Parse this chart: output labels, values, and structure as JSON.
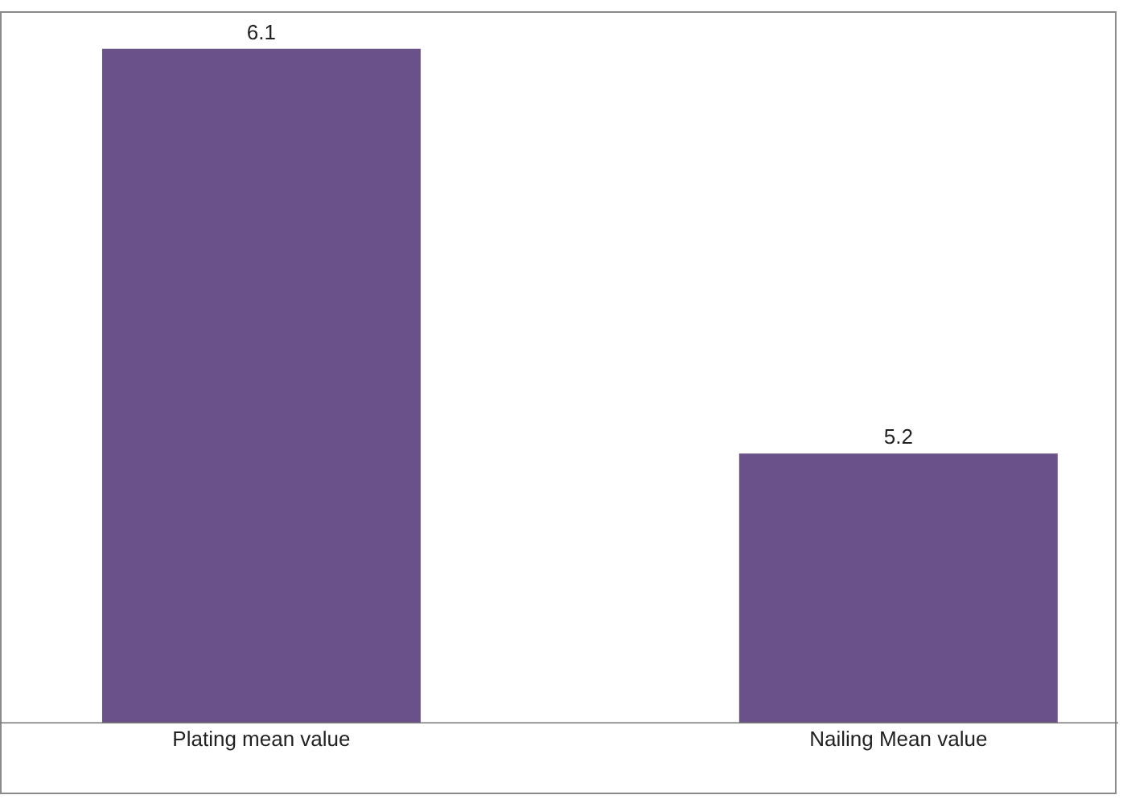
{
  "chart_data": {
    "type": "bar",
    "categories": [
      "Plating mean value",
      "Nailing Mean value"
    ],
    "values": [
      6.1,
      5.2
    ],
    "color": "#6b5189",
    "data_labels": true,
    "ylim": [
      4.6,
      6.18
    ],
    "tick_labels": "x",
    "grid": false,
    "legend": false
  }
}
